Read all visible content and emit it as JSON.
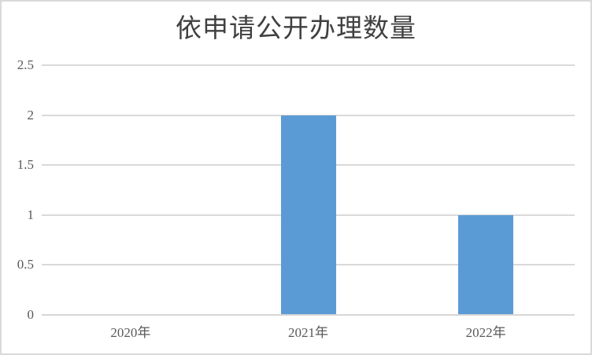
{
  "chart_data": {
    "type": "bar",
    "title": "依申请公开办理数量",
    "categories": [
      "2020年",
      "2021年",
      "2022年"
    ],
    "values": [
      0,
      2,
      1
    ],
    "series": [
      {
        "name": "依申请公开办理数量",
        "values": [
          0,
          2,
          1
        ]
      }
    ],
    "xlabel": "",
    "ylabel": "",
    "ylim": [
      0,
      2.5
    ],
    "y_ticks": [
      0,
      0.5,
      1,
      1.5,
      2,
      2.5
    ],
    "y_tick_labels": [
      "0",
      "0.5",
      "1",
      "1.5",
      "2",
      "2.5"
    ],
    "grid": true,
    "legend": false,
    "legend_position": "none",
    "colors": {
      "bar": "#5B9BD5",
      "title_text": "#404040",
      "tick_text": "#595959",
      "gridline": "#D9D9D9",
      "axis_line": "#D6D6D6",
      "chart_border": "#D9D9D9",
      "background": "#FFFFFF"
    }
  }
}
